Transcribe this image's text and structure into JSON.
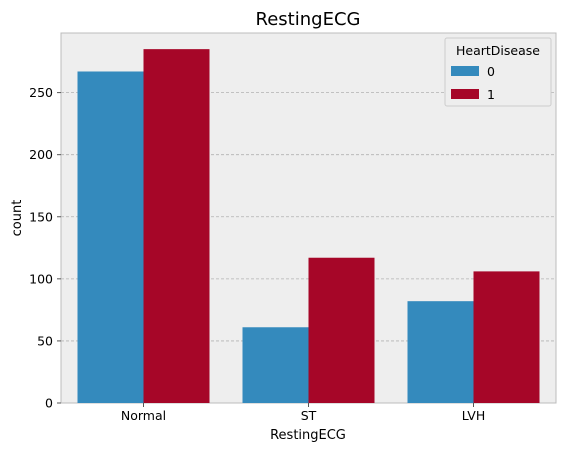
{
  "chart_data": {
    "type": "bar",
    "title": "RestingECG",
    "xlabel": "RestingECG",
    "ylabel": "count",
    "categories": [
      "Normal",
      "ST",
      "LVH"
    ],
    "series": [
      {
        "name": "0",
        "values": [
          267,
          61,
          82
        ]
      },
      {
        "name": "1",
        "values": [
          285,
          117,
          106
        ]
      }
    ],
    "ylim": [
      0,
      298
    ],
    "yticks": [
      0,
      50,
      100,
      150,
      200,
      250
    ],
    "grid": true,
    "legend": {
      "title": "HeartDisease",
      "placement": "top-right"
    },
    "colors": {
      "series0": "#348ABD",
      "series1": "#A60628",
      "background": "#EEEEEE",
      "grid": "#B2B2B2",
      "spine": "#BCBCBC"
    }
  }
}
